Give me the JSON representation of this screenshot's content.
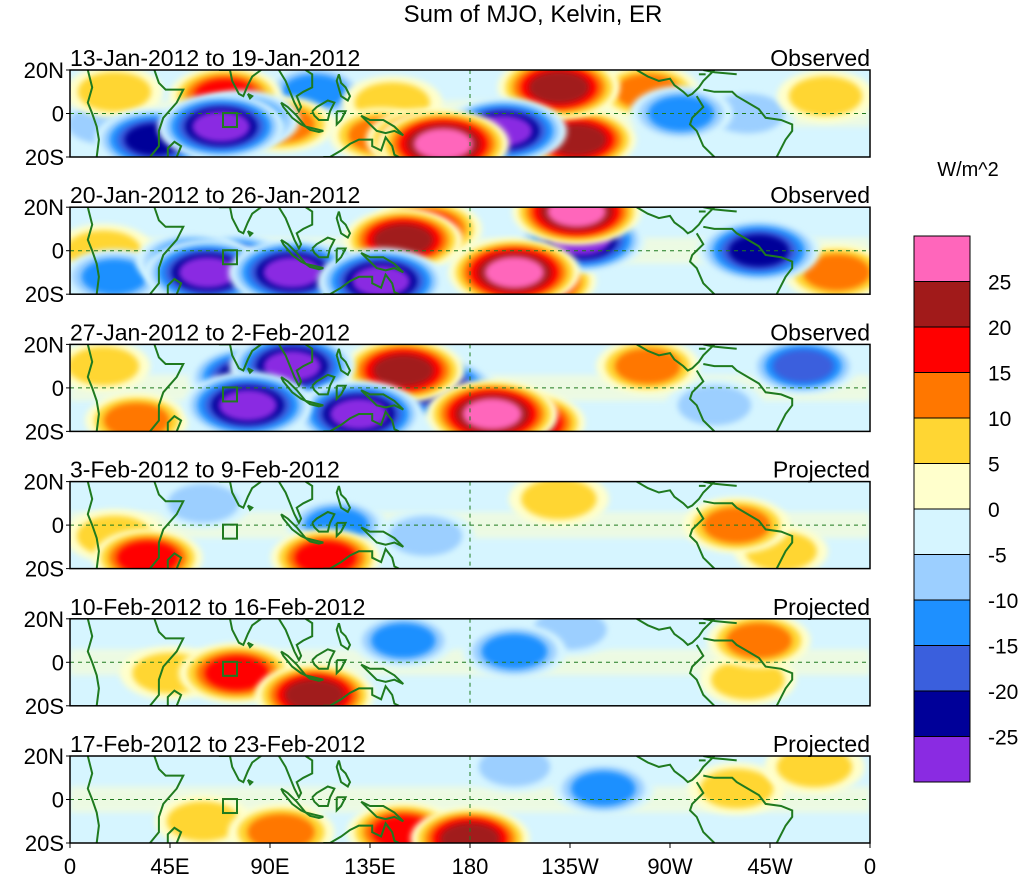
{
  "chart_data": {
    "type": "heatmap",
    "title": "Sum of MJO, Kelvin, ER",
    "colorbar_units": "W/m^2",
    "colorbar_levels": [
      -30,
      -25,
      -20,
      -15,
      -10,
      -5,
      0,
      5,
      10,
      15,
      20,
      25,
      30
    ],
    "colorbar_tick_labels": [
      "25",
      "20",
      "15",
      "10",
      "5",
      "0",
      "-5",
      "-10",
      "-15",
      "-20",
      "-25"
    ],
    "colorbar_colors": [
      "#ff66bb",
      "#a11a1a",
      "#ff0000",
      "#ff7700",
      "#ffd633",
      "#ffffcc",
      "#d6f5ff",
      "#9ccfff",
      "#1e90ff",
      "#3a5fdd",
      "#000099",
      "#8a2be2"
    ],
    "lon_range": [
      0,
      360
    ],
    "lat_range": [
      -20,
      20
    ],
    "x_tick_labels": [
      "0",
      "45E",
      "90E",
      "135E",
      "180",
      "135W",
      "90W",
      "45W",
      "0"
    ],
    "y_tick_labels": [
      "20N",
      "0",
      "20S"
    ],
    "panels": [
      {
        "period": "13-Jan-2012 to 19-Jan-2012",
        "status": "Observed",
        "anomalies": [
          {
            "lon": 20,
            "lat": 10,
            "value": 8
          },
          {
            "lon": 15,
            "lat": -5,
            "value": -6
          },
          {
            "lon": 38,
            "lat": -12,
            "value": -22
          },
          {
            "lon": 70,
            "lat": 8,
            "value": 18
          },
          {
            "lon": 68,
            "lat": -6,
            "value": -27
          },
          {
            "lon": 78,
            "lat": -3,
            "value": -18
          },
          {
            "lon": 95,
            "lat": -5,
            "value": 14
          },
          {
            "lon": 110,
            "lat": 10,
            "value": -10
          },
          {
            "lon": 145,
            "lat": 5,
            "value": 10
          },
          {
            "lon": 140,
            "lat": -10,
            "value": 12
          },
          {
            "lon": 160,
            "lat": -12,
            "value": 22
          },
          {
            "lon": 168,
            "lat": -14,
            "value": 30
          },
          {
            "lon": 195,
            "lat": -8,
            "value": -27
          },
          {
            "lon": 220,
            "lat": 12,
            "value": 24
          },
          {
            "lon": 228,
            "lat": -12,
            "value": 22
          },
          {
            "lon": 260,
            "lat": 10,
            "value": 12
          },
          {
            "lon": 275,
            "lat": 0,
            "value": -12
          },
          {
            "lon": 305,
            "lat": 0,
            "value": -8
          },
          {
            "lon": 340,
            "lat": 8,
            "value": 8
          }
        ]
      },
      {
        "period": "20-Jan-2012 to 26-Jan-2012",
        "status": "Observed",
        "anomalies": [
          {
            "lon": 15,
            "lat": 0,
            "value": 10
          },
          {
            "lon": 20,
            "lat": -12,
            "value": -12
          },
          {
            "lon": 55,
            "lat": -5,
            "value": -18
          },
          {
            "lon": 62,
            "lat": -10,
            "value": -27
          },
          {
            "lon": 75,
            "lat": -5,
            "value": -15
          },
          {
            "lon": 100,
            "lat": -10,
            "value": -27
          },
          {
            "lon": 118,
            "lat": -12,
            "value": -22
          },
          {
            "lon": 140,
            "lat": -14,
            "value": -27
          },
          {
            "lon": 150,
            "lat": 5,
            "value": 22
          },
          {
            "lon": 160,
            "lat": 10,
            "value": 18
          },
          {
            "lon": 200,
            "lat": -10,
            "value": 30
          },
          {
            "lon": 210,
            "lat": -14,
            "value": 22
          },
          {
            "lon": 228,
            "lat": 18,
            "value": 28
          },
          {
            "lon": 230,
            "lat": 5,
            "value": -27
          },
          {
            "lon": 310,
            "lat": 0,
            "value": -24
          },
          {
            "lon": 345,
            "lat": -10,
            "value": 14
          }
        ]
      },
      {
        "period": "27-Jan-2012 to 2-Feb-2012",
        "status": "Observed",
        "anomalies": [
          {
            "lon": 15,
            "lat": 10,
            "value": 6
          },
          {
            "lon": 30,
            "lat": -15,
            "value": 12
          },
          {
            "lon": 80,
            "lat": 5,
            "value": -22
          },
          {
            "lon": 80,
            "lat": -8,
            "value": -28
          },
          {
            "lon": 100,
            "lat": 10,
            "value": -26
          },
          {
            "lon": 130,
            "lat": -12,
            "value": -27
          },
          {
            "lon": 150,
            "lat": 8,
            "value": 24
          },
          {
            "lon": 165,
            "lat": 0,
            "value": -22
          },
          {
            "lon": 190,
            "lat": -12,
            "value": 30
          },
          {
            "lon": 205,
            "lat": -16,
            "value": 22
          },
          {
            "lon": 260,
            "lat": 10,
            "value": 12
          },
          {
            "lon": 290,
            "lat": -8,
            "value": -8
          },
          {
            "lon": 330,
            "lat": 10,
            "value": -15
          }
        ]
      },
      {
        "period": "3-Feb-2012 to 9-Feb-2012",
        "status": "Projected",
        "anomalies": [
          {
            "lon": 20,
            "lat": -5,
            "value": 10
          },
          {
            "lon": 35,
            "lat": -15,
            "value": 16
          },
          {
            "lon": 60,
            "lat": 10,
            "value": -6
          },
          {
            "lon": 115,
            "lat": -15,
            "value": 16
          },
          {
            "lon": 120,
            "lat": 0,
            "value": -10
          },
          {
            "lon": 160,
            "lat": -5,
            "value": -8
          },
          {
            "lon": 220,
            "lat": 12,
            "value": 10
          },
          {
            "lon": 300,
            "lat": 0,
            "value": 14
          },
          {
            "lon": 320,
            "lat": -12,
            "value": 6
          }
        ]
      },
      {
        "period": "10-Feb-2012 to 16-Feb-2012",
        "status": "Projected",
        "anomalies": [
          {
            "lon": 45,
            "lat": -5,
            "value": 10
          },
          {
            "lon": 75,
            "lat": -5,
            "value": 20
          },
          {
            "lon": 110,
            "lat": -15,
            "value": 22
          },
          {
            "lon": 150,
            "lat": 10,
            "value": -10
          },
          {
            "lon": 200,
            "lat": 5,
            "value": -12
          },
          {
            "lon": 225,
            "lat": 15,
            "value": -8
          },
          {
            "lon": 310,
            "lat": 10,
            "value": 12
          },
          {
            "lon": 305,
            "lat": -8,
            "value": 8
          }
        ]
      },
      {
        "period": "17-Feb-2012 to 23-Feb-2012",
        "status": "Projected",
        "anomalies": [
          {
            "lon": 60,
            "lat": -10,
            "value": 8
          },
          {
            "lon": 95,
            "lat": -15,
            "value": 14
          },
          {
            "lon": 150,
            "lat": -15,
            "value": 18
          },
          {
            "lon": 180,
            "lat": -18,
            "value": 22
          },
          {
            "lon": 200,
            "lat": 15,
            "value": -6
          },
          {
            "lon": 240,
            "lat": 5,
            "value": -10
          },
          {
            "lon": 300,
            "lat": 5,
            "value": 8
          },
          {
            "lon": 335,
            "lat": 15,
            "value": 10
          }
        ]
      }
    ]
  }
}
